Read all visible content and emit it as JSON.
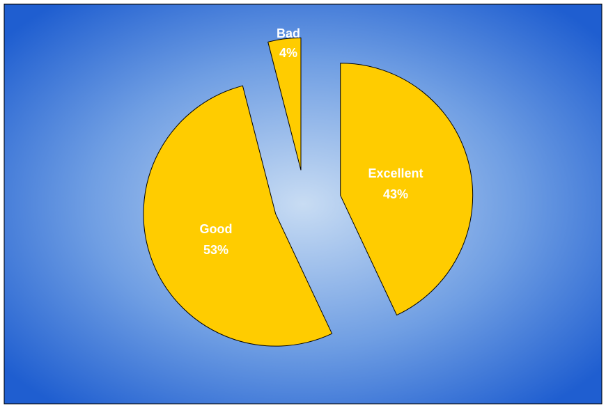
{
  "chart_data": {
    "type": "pie",
    "title": "",
    "categories": [
      "Excellent",
      "Good",
      "Bad"
    ],
    "values": [
      43,
      53,
      4
    ],
    "value_labels": [
      "43%",
      "53%",
      "4%"
    ],
    "exploded": true,
    "colors": {
      "slice": "#ffcc00",
      "slice_outline": "#000000",
      "label_text": "#ffffff",
      "background_center": "#c8dcf3",
      "background_edge": "#1f5ed0",
      "frame_border": "#000000"
    }
  }
}
